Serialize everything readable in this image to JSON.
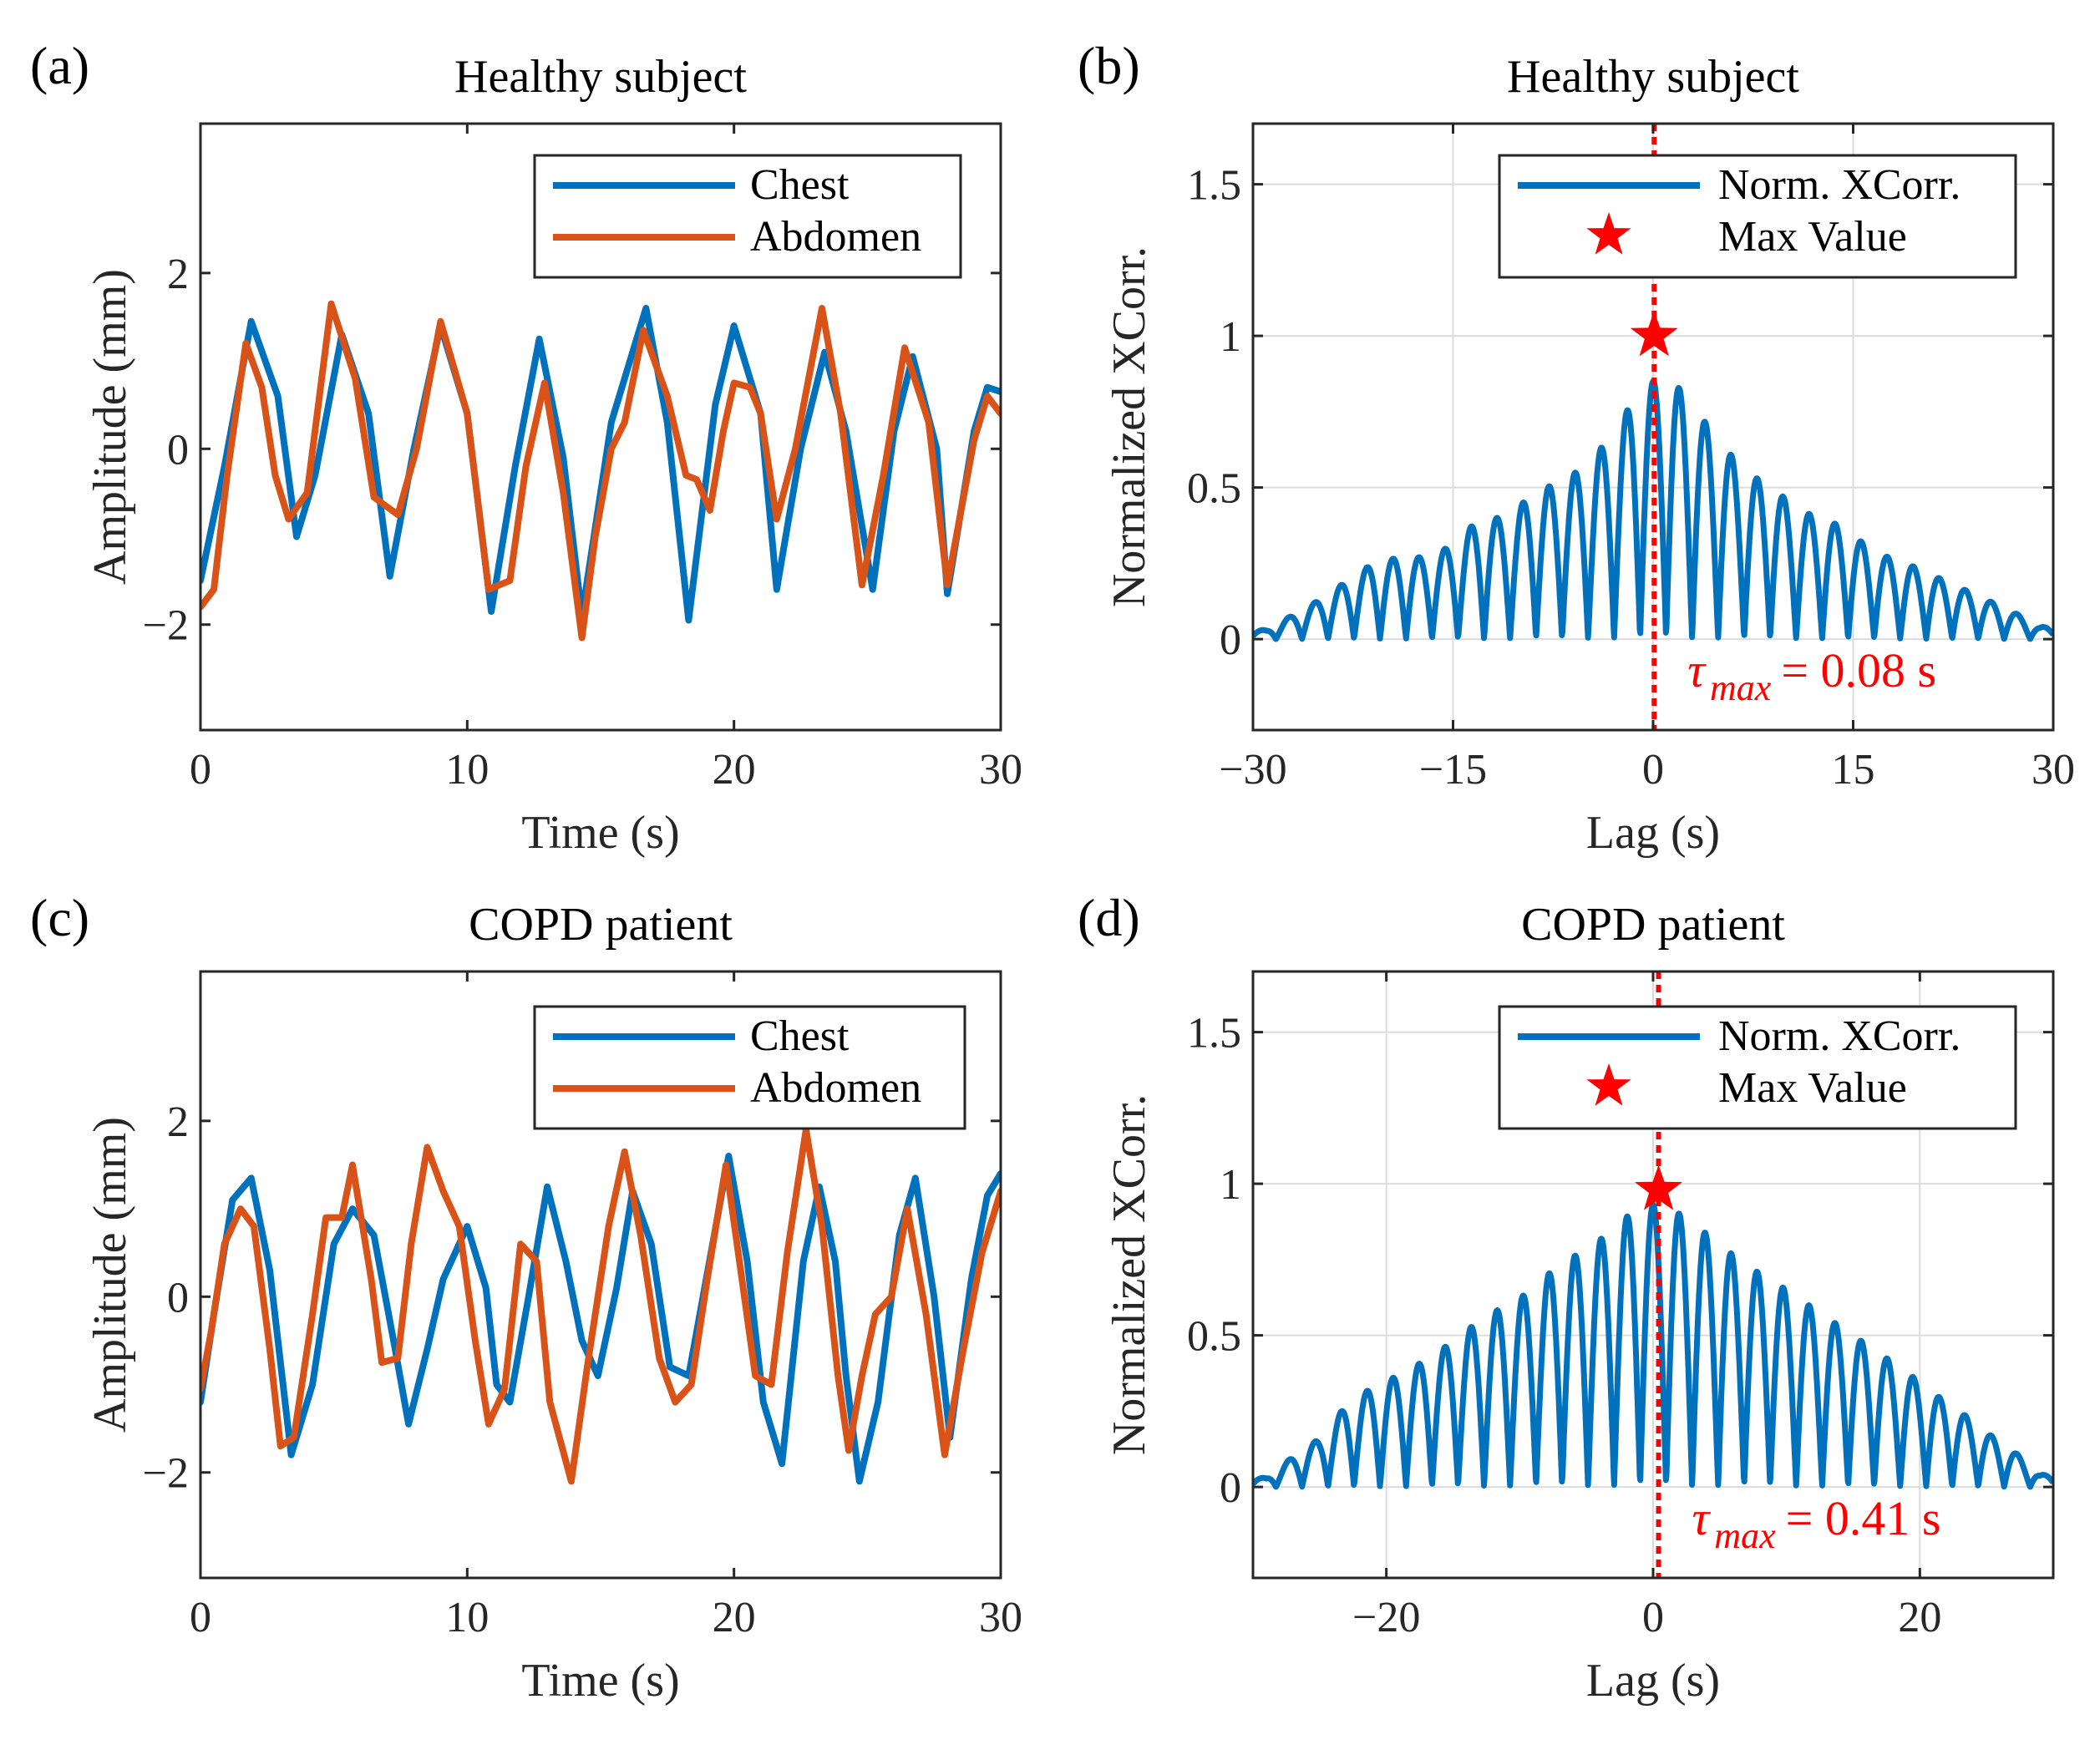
{
  "chart_data": [
    {
      "panel": "(a)",
      "type": "line",
      "title": "Healthy subject",
      "xlabel": "Time (s)",
      "ylabel": "Amplitude (mm)",
      "xlim": [
        0,
        30
      ],
      "ylim": [
        -3.2,
        3.7
      ],
      "xticks": [
        0,
        10,
        20,
        30
      ],
      "xtick_labels": [
        "0",
        "10",
        "20",
        "30"
      ],
      "yticks": [
        -2,
        0,
        2
      ],
      "ytick_labels": [
        "−2",
        "0",
        "2"
      ],
      "legend": [
        "Chest",
        "Abdomen"
      ],
      "series": [
        {
          "name": "Chest",
          "color": "#0072BD",
          "points": [
            [
              0,
              -1.5
            ],
            [
              0.9,
              -0.2
            ],
            [
              1.9,
              1.45
            ],
            [
              2.9,
              0.6
            ],
            [
              3.6,
              -1.0
            ],
            [
              4.3,
              -0.3
            ],
            [
              5.3,
              1.3
            ],
            [
              6.3,
              0.4
            ],
            [
              7.1,
              -1.45
            ],
            [
              8.0,
              0.0
            ],
            [
              9.0,
              1.4
            ],
            [
              10.0,
              0.4
            ],
            [
              10.9,
              -1.85
            ],
            [
              11.8,
              -0.2
            ],
            [
              12.7,
              1.25
            ],
            [
              13.6,
              -0.1
            ],
            [
              14.3,
              -1.9
            ],
            [
              15.4,
              0.3
            ],
            [
              16.7,
              1.6
            ],
            [
              17.5,
              0.3
            ],
            [
              18.3,
              -1.95
            ],
            [
              19.3,
              0.5
            ],
            [
              20.0,
              1.4
            ],
            [
              21.0,
              0.4
            ],
            [
              21.6,
              -1.6
            ],
            [
              22.5,
              0.0
            ],
            [
              23.4,
              1.1
            ],
            [
              24.2,
              0.2
            ],
            [
              25.2,
              -1.6
            ],
            [
              26.0,
              0.2
            ],
            [
              26.7,
              1.05
            ],
            [
              27.6,
              0.0
            ],
            [
              28.0,
              -1.65
            ],
            [
              29.0,
              0.2
            ],
            [
              29.5,
              0.7
            ],
            [
              30,
              0.65
            ]
          ]
        },
        {
          "name": "Abdomen",
          "color": "#D95319",
          "points": [
            [
              0,
              -1.8
            ],
            [
              0.5,
              -1.6
            ],
            [
              1.0,
              -0.3
            ],
            [
              1.7,
              1.2
            ],
            [
              2.3,
              0.7
            ],
            [
              2.8,
              -0.3
            ],
            [
              3.3,
              -0.8
            ],
            [
              4.0,
              -0.5
            ],
            [
              4.9,
              1.65
            ],
            [
              5.8,
              0.8
            ],
            [
              6.5,
              -0.55
            ],
            [
              7.4,
              -0.75
            ],
            [
              8.1,
              0.0
            ],
            [
              9.0,
              1.45
            ],
            [
              10.0,
              0.4
            ],
            [
              10.8,
              -1.6
            ],
            [
              11.6,
              -1.5
            ],
            [
              12.2,
              -0.2
            ],
            [
              12.9,
              0.75
            ],
            [
              13.6,
              -0.5
            ],
            [
              14.3,
              -2.15
            ],
            [
              14.8,
              -1.0
            ],
            [
              15.4,
              0.0
            ],
            [
              15.9,
              0.3
            ],
            [
              16.6,
              1.35
            ],
            [
              17.5,
              0.6
            ],
            [
              18.2,
              -0.3
            ],
            [
              18.6,
              -0.35
            ],
            [
              19.1,
              -0.7
            ],
            [
              19.6,
              0.2
            ],
            [
              20.0,
              0.75
            ],
            [
              20.6,
              0.7
            ],
            [
              21.0,
              0.4
            ],
            [
              21.6,
              -0.8
            ],
            [
              22.3,
              0.0
            ],
            [
              23.3,
              1.6
            ],
            [
              24.0,
              0.4
            ],
            [
              24.8,
              -1.55
            ],
            [
              25.6,
              -0.3
            ],
            [
              26.4,
              1.15
            ],
            [
              27.3,
              0.3
            ],
            [
              28.0,
              -1.55
            ],
            [
              29.0,
              0.1
            ],
            [
              29.5,
              0.6
            ],
            [
              30,
              0.4
            ]
          ]
        }
      ]
    },
    {
      "panel": "(b)",
      "type": "line",
      "title": "Healthy subject",
      "xlabel": "Lag (s)",
      "ylabel": "Normalized XCorr.",
      "xlim": [
        -30,
        30
      ],
      "ylim": [
        -0.3,
        1.7
      ],
      "xticks": [
        -30,
        -15,
        0,
        15,
        30
      ],
      "xtick_labels": [
        "−30",
        "−15",
        "0",
        "15",
        "30"
      ],
      "yticks": [
        0,
        0.5,
        1,
        1.5
      ],
      "ytick_labels": [
        "0",
        "0.5",
        "1",
        "1.5"
      ],
      "legend": [
        "Norm. XCorr.",
        "Max Value"
      ],
      "series": [
        {
          "name": "Norm. XCorr.",
          "color": "#0072BD",
          "period": 1.95,
          "peaks": [
            [
              -29,
              0.03
            ],
            [
              -27,
              0.08
            ],
            [
              -25,
              0.13
            ],
            [
              -23,
              0.19
            ],
            [
              -21,
              0.25
            ],
            [
              -19,
              0.27
            ],
            [
              -17,
              0.27
            ],
            [
              -15,
              0.31
            ],
            [
              -13,
              0.4
            ],
            [
              -11,
              0.4
            ],
            [
              -9,
              0.48
            ],
            [
              -7,
              0.52
            ],
            [
              -5,
              0.57
            ],
            [
              -3,
              0.68
            ],
            [
              -1,
              0.82
            ],
            [
              1,
              0.88
            ],
            [
              3,
              0.77
            ],
            [
              5,
              0.65
            ],
            [
              7,
              0.55
            ],
            [
              9,
              0.5
            ],
            [
              11,
              0.42
            ],
            [
              13,
              0.4
            ],
            [
              15,
              0.34
            ],
            [
              17,
              0.28
            ],
            [
              19,
              0.25
            ],
            [
              21,
              0.21
            ],
            [
              23,
              0.17
            ],
            [
              25,
              0.13
            ],
            [
              27,
              0.09
            ],
            [
              29,
              0.04
            ]
          ]
        }
      ],
      "max_point": {
        "x": 0.08,
        "y": 1.0
      },
      "vline_x": 0.08,
      "annotation": {
        "tau_symbol": "τ",
        "tau_sub": "max",
        "value_text": "= 0.08 s"
      }
    },
    {
      "panel": "(c)",
      "type": "line",
      "title": "COPD patient",
      "xlabel": "Time (s)",
      "ylabel": "Amplitude (mm)",
      "xlim": [
        0,
        30
      ],
      "ylim": [
        -3.2,
        3.7
      ],
      "xticks": [
        0,
        10,
        20,
        30
      ],
      "xtick_labels": [
        "0",
        "10",
        "20",
        "30"
      ],
      "yticks": [
        -2,
        0,
        2
      ],
      "ytick_labels": [
        "−2",
        "0",
        "2"
      ],
      "legend": [
        "Chest",
        "Abdomen"
      ],
      "series": [
        {
          "name": "Chest",
          "color": "#0072BD",
          "points": [
            [
              0,
              -1.2
            ],
            [
              0.5,
              -0.2
            ],
            [
              1.2,
              1.1
            ],
            [
              1.9,
              1.35
            ],
            [
              2.6,
              0.3
            ],
            [
              3.4,
              -1.8
            ],
            [
              4.2,
              -1.0
            ],
            [
              5.0,
              0.6
            ],
            [
              5.7,
              1.0
            ],
            [
              6.5,
              0.7
            ],
            [
              7.3,
              -0.6
            ],
            [
              7.8,
              -1.45
            ],
            [
              8.5,
              -0.6
            ],
            [
              9.1,
              0.2
            ],
            [
              10.0,
              0.8
            ],
            [
              10.7,
              0.1
            ],
            [
              11.1,
              -1.0
            ],
            [
              11.6,
              -1.2
            ],
            [
              12.3,
              0.0
            ],
            [
              13.0,
              1.25
            ],
            [
              13.7,
              0.4
            ],
            [
              14.3,
              -0.5
            ],
            [
              14.9,
              -0.9
            ],
            [
              15.6,
              0.1
            ],
            [
              16.2,
              1.2
            ],
            [
              16.9,
              0.6
            ],
            [
              17.6,
              -0.8
            ],
            [
              18.3,
              -0.9
            ],
            [
              19.2,
              0.6
            ],
            [
              19.8,
              1.6
            ],
            [
              20.5,
              0.4
            ],
            [
              21.1,
              -1.2
            ],
            [
              21.8,
              -1.9
            ],
            [
              22.6,
              0.4
            ],
            [
              23.2,
              1.25
            ],
            [
              23.8,
              0.4
            ],
            [
              24.2,
              -0.9
            ],
            [
              24.7,
              -2.1
            ],
            [
              25.4,
              -1.2
            ],
            [
              26.2,
              0.7
            ],
            [
              26.8,
              1.35
            ],
            [
              27.5,
              0.0
            ],
            [
              28.1,
              -1.6
            ],
            [
              28.9,
              0.2
            ],
            [
              29.5,
              1.15
            ],
            [
              30,
              1.4
            ]
          ]
        },
        {
          "name": "Abdomen",
          "color": "#D95319",
          "points": [
            [
              0,
              -1.05
            ],
            [
              0.4,
              -0.4
            ],
            [
              0.9,
              0.6
            ],
            [
              1.5,
              1.0
            ],
            [
              2.0,
              0.8
            ],
            [
              2.6,
              -0.6
            ],
            [
              3.0,
              -1.7
            ],
            [
              3.5,
              -1.6
            ],
            [
              4.2,
              -0.2
            ],
            [
              4.7,
              0.9
            ],
            [
              5.3,
              0.9
            ],
            [
              5.7,
              1.5
            ],
            [
              6.4,
              0.2
            ],
            [
              6.8,
              -0.75
            ],
            [
              7.4,
              -0.7
            ],
            [
              7.9,
              0.6
            ],
            [
              8.5,
              1.7
            ],
            [
              9.1,
              1.2
            ],
            [
              9.7,
              0.8
            ],
            [
              10.3,
              -0.5
            ],
            [
              10.8,
              -1.45
            ],
            [
              11.4,
              -1.05
            ],
            [
              12.0,
              0.6
            ],
            [
              12.6,
              0.4
            ],
            [
              13.1,
              -1.2
            ],
            [
              13.9,
              -2.1
            ],
            [
              14.5,
              -0.8
            ],
            [
              15.3,
              0.8
            ],
            [
              15.9,
              1.65
            ],
            [
              16.5,
              0.7
            ],
            [
              17.2,
              -0.7
            ],
            [
              17.8,
              -1.2
            ],
            [
              18.4,
              -1.0
            ],
            [
              19.0,
              0.2
            ],
            [
              19.7,
              1.5
            ],
            [
              20.3,
              0.2
            ],
            [
              20.8,
              -0.9
            ],
            [
              21.4,
              -1.0
            ],
            [
              22.0,
              0.5
            ],
            [
              22.7,
              1.9
            ],
            [
              23.3,
              0.8
            ],
            [
              23.9,
              -0.9
            ],
            [
              24.3,
              -1.75
            ],
            [
              24.8,
              -0.9
            ],
            [
              25.3,
              -0.2
            ],
            [
              25.9,
              0.0
            ],
            [
              26.5,
              1.0
            ],
            [
              27.2,
              -0.2
            ],
            [
              27.9,
              -1.8
            ],
            [
              28.6,
              -0.6
            ],
            [
              29.3,
              0.5
            ],
            [
              30,
              1.2
            ]
          ]
        }
      ]
    },
    {
      "panel": "(d)",
      "type": "line",
      "title": "COPD patient",
      "xlabel": "Lag (s)",
      "ylabel": "Normalized XCorr.",
      "xlim": [
        -30,
        30
      ],
      "ylim": [
        -0.3,
        1.7
      ],
      "xticks": [
        -20,
        0,
        20
      ],
      "xtick_labels": [
        "−20",
        "0",
        "20"
      ],
      "yticks": [
        0,
        0.5,
        1,
        1.5
      ],
      "ytick_labels": [
        "0",
        "0.5",
        "1",
        "1.5"
      ],
      "legend": [
        "Norm. XCorr.",
        "Max Value"
      ],
      "series": [
        {
          "name": "Norm. XCorr.",
          "color": "#0072BD",
          "period": 1.95,
          "peaks": [
            [
              -29,
              0.03
            ],
            [
              -27,
              0.1
            ],
            [
              -25,
              0.16
            ],
            [
              -23,
              0.27
            ],
            [
              -21,
              0.33
            ],
            [
              -19,
              0.37
            ],
            [
              -17,
              0.42
            ],
            [
              -15,
              0.48
            ],
            [
              -13,
              0.55
            ],
            [
              -11,
              0.6
            ],
            [
              -9,
              0.65
            ],
            [
              -7,
              0.74
            ],
            [
              -5,
              0.78
            ],
            [
              -3,
              0.85
            ],
            [
              -1,
              0.93
            ],
            [
              1,
              0.93
            ],
            [
              3,
              0.87
            ],
            [
              5,
              0.8
            ],
            [
              7,
              0.73
            ],
            [
              9,
              0.68
            ],
            [
              11,
              0.62
            ],
            [
              13,
              0.56
            ],
            [
              15,
              0.5
            ],
            [
              17,
              0.44
            ],
            [
              19,
              0.38
            ],
            [
              21,
              0.31
            ],
            [
              23,
              0.25
            ],
            [
              25,
              0.18
            ],
            [
              27,
              0.12
            ],
            [
              29,
              0.04
            ]
          ]
        }
      ],
      "max_point": {
        "x": 0.41,
        "y": 0.98
      },
      "vline_x": 0.41,
      "annotation": {
        "tau_symbol": "τ",
        "tau_sub": "max",
        "value_text": "= 0.41 s"
      }
    }
  ]
}
